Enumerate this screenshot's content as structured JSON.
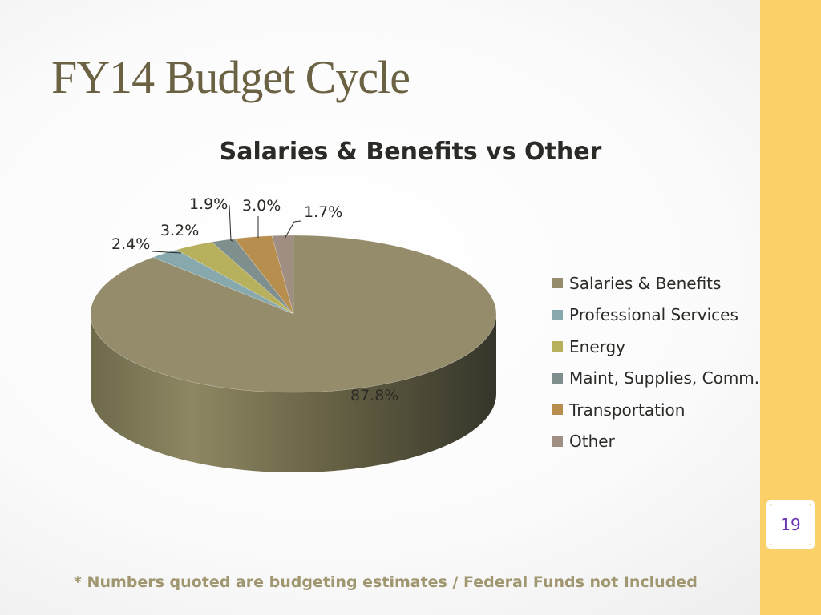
{
  "slide": {
    "title": "FY14 Budget Cycle",
    "footnote": "* Numbers quoted are budgeting estimates / Federal Funds not Included",
    "page_number": "19"
  },
  "chart_data": {
    "type": "pie",
    "style": "3d",
    "title": "Salaries & Benefits vs Other",
    "categories": [
      "Salaries & Benefits",
      "Professional Services",
      "Energy",
      "Maint, Supplies, Comm.",
      "Transportation",
      "Other"
    ],
    "values": [
      87.8,
      2.4,
      3.2,
      1.9,
      3.0,
      1.7
    ],
    "labels": [
      "87.8%",
      "2.4%",
      "3.2%",
      "1.9%",
      "3.0%",
      "1.7%"
    ],
    "colors": [
      "#948c6a",
      "#87a9ad",
      "#b7b15d",
      "#7f8f8e",
      "#b88e4e",
      "#a18e82"
    ],
    "legend_position": "right"
  },
  "theme": {
    "title_color": "#6b6244",
    "sidebar_color": "#fcd068",
    "page_number_color": "#6b35b4",
    "footnote_color": "#a09670"
  }
}
